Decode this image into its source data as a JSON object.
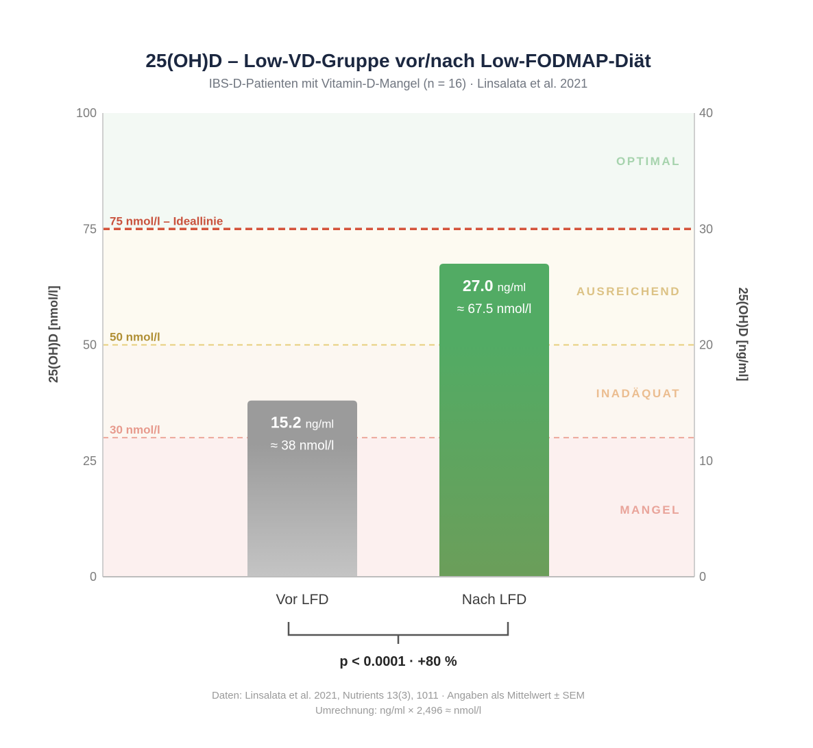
{
  "title": "25(OH)D – Low-VD-Gruppe vor/nach Low-FODMAP-Diät",
  "subtitle": "IBS-D-Patienten mit Vitamin-D-Mangel (n = 16) · Linsalata et al. 2021",
  "footer": {
    "line1": "Daten: Linsalata et al. 2021, Nutrients 13(3), 1011 · Angaben als Mittelwert ± SEM",
    "line2": "Umrechnung: ng/ml × 2,496 ≈ nmol/l"
  },
  "significance": {
    "label": "p < 0.0001 · +80 %"
  },
  "colors": {
    "bar_before_top": "#9b9b9b",
    "bar_before_bottom": "#c4c4c4",
    "bar_after_top": "#52ab64",
    "bar_after_bottom": "#6b9e5a",
    "zone_optimal_bg": "#f3f9f4",
    "zone_ausreichend_bg": "#fdfaf1",
    "zone_inadaquat_bg": "#fcf7f1",
    "zone_mangel_bg": "#fcf0ef",
    "line_ideal": "#d4543c",
    "line_50": "#e7cf7c",
    "line_30": "#eca79a",
    "text_optimal": "#a6d3ad",
    "text_ausreichend": "#dcc285",
    "text_inadaquat": "#ebbd90",
    "text_mangel": "#e9a49a",
    "text_ideal": "#c9523d",
    "text_50": "#b08f34",
    "text_30": "#e79a8d"
  },
  "chart_data": {
    "type": "bar",
    "categories": [
      "Vor LFD",
      "Nach LFD"
    ],
    "series": [
      {
        "values": [
          15.2,
          27.0
        ],
        "unit": "ng/ml"
      }
    ],
    "value_labels": [
      {
        "main": "15.2",
        "unit": "ng/ml",
        "sub": "≈ 38 nmol/l"
      },
      {
        "main": "27.0",
        "unit": "ng/ml",
        "sub": "≈ 67.5 nmol/l"
      }
    ],
    "ylabel_left": "25(OH)D [nmol/l]",
    "ylabel_right": "25(OH)D [ng/ml]",
    "ylim_left": [
      0,
      100
    ],
    "ylim_right": [
      0,
      40
    ],
    "yticks_left": [
      0,
      25,
      50,
      75,
      100
    ],
    "yticks_right": [
      0,
      10,
      20,
      30,
      40
    ],
    "reference_lines": [
      {
        "value_nmol": 75,
        "label": "75 nmol/l – Ideallinie",
        "color_key": "line_ideal",
        "text_key": "text_ideal"
      },
      {
        "value_nmol": 50,
        "label": "50 nmol/l",
        "color_key": "line_50",
        "text_key": "text_50"
      },
      {
        "value_nmol": 30,
        "label": "30 nmol/l",
        "color_key": "line_30",
        "text_key": "text_30"
      }
    ],
    "zones": [
      {
        "label": "OPTIMAL",
        "from_nmol": 75,
        "to_nmol": 100,
        "bg_key": "zone_optimal_bg",
        "text_key": "text_optimal"
      },
      {
        "label": "AUSREICHEND",
        "from_nmol": 50,
        "to_nmol": 75,
        "bg_key": "zone_ausreichend_bg",
        "text_key": "text_ausreichend"
      },
      {
        "label": "INADÄQUAT",
        "from_nmol": 30,
        "to_nmol": 50,
        "bg_key": "zone_inadaquat_bg",
        "text_key": "text_inadaquat"
      },
      {
        "label": "MANGEL",
        "from_nmol": 0,
        "to_nmol": 30,
        "bg_key": "zone_mangel_bg",
        "text_key": "text_mangel"
      }
    ],
    "grid": false
  }
}
